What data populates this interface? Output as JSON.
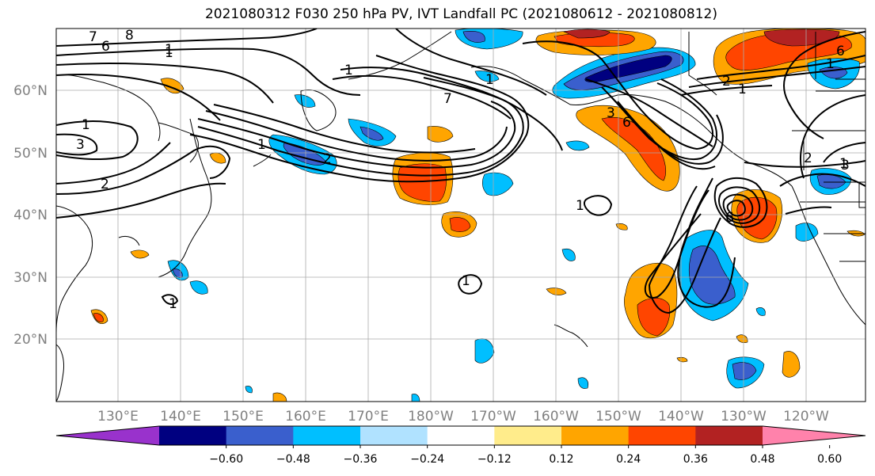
{
  "title": "2021080312 F030 250 hPa PV, IVT Landfall PC (2021080612 - 2021080812)",
  "axes": {
    "lon_ticks": [
      "130°E",
      "140°E",
      "150°E",
      "160°E",
      "170°E",
      "180°W",
      "170°W",
      "160°W",
      "150°W",
      "140°W",
      "130°W",
      "120°W"
    ],
    "lat_ticks": [
      "60°N",
      "50°N",
      "40°N",
      "30°N",
      "20°N"
    ]
  },
  "colorbar": {
    "tick_labels": [
      "−0.60",
      "−0.48",
      "−0.36",
      "−0.24",
      "−0.12",
      "0.12",
      "0.24",
      "0.36",
      "0.48",
      "0.60"
    ],
    "colors": [
      "#9932cc",
      "#000080",
      "#3a5fcd",
      "#00bfff",
      "#b0e2ff",
      "#ffffff",
      "#ffec8b",
      "#ffa500",
      "#ff4500",
      "#b22222",
      "#ff82ab"
    ]
  },
  "contour_labels": [
    "7",
    "8",
    "6",
    "1",
    "3",
    "2",
    "1",
    "1",
    "2",
    "7",
    "1",
    "3",
    "6",
    "2",
    "1",
    "6",
    "1",
    "2",
    "1",
    "3",
    "6",
    "1",
    "1",
    "1",
    "1",
    "1"
  ]
}
